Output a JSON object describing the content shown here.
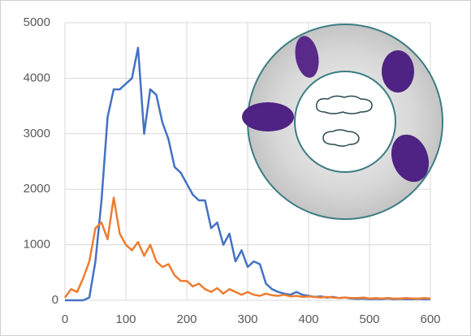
{
  "chart_data": {
    "type": "line",
    "x": [
      0,
      10,
      20,
      30,
      40,
      50,
      60,
      70,
      80,
      90,
      100,
      110,
      120,
      130,
      140,
      150,
      160,
      170,
      180,
      190,
      200,
      210,
      220,
      230,
      240,
      250,
      260,
      270,
      280,
      290,
      300,
      310,
      320,
      330,
      340,
      350,
      360,
      370,
      380,
      390,
      400,
      410,
      420,
      430,
      440,
      450,
      460,
      470,
      480,
      490,
      500,
      510,
      520,
      530,
      540,
      550,
      560,
      570,
      580,
      590,
      600
    ],
    "series": [
      {
        "color": "#4472c4",
        "values": [
          0,
          0,
          0,
          0,
          50,
          700,
          1800,
          3300,
          3800,
          3800,
          3900,
          4000,
          4550,
          3000,
          3800,
          3700,
          3200,
          2900,
          2400,
          2300,
          2100,
          1900,
          1800,
          1800,
          1300,
          1400,
          1000,
          1200,
          700,
          900,
          600,
          700,
          650,
          300,
          200,
          150,
          120,
          100,
          150,
          100,
          80,
          60,
          70,
          50,
          60,
          40,
          50,
          30,
          25,
          30,
          20,
          25,
          20,
          30,
          20,
          25,
          20,
          20,
          25,
          20,
          20
        ]
      },
      {
        "color": "#ed7d31",
        "values": [
          50,
          200,
          150,
          400,
          700,
          1300,
          1400,
          1100,
          1850,
          1200,
          1000,
          900,
          1050,
          800,
          1000,
          700,
          600,
          650,
          450,
          350,
          350,
          250,
          300,
          200,
          150,
          220,
          120,
          200,
          150,
          100,
          150,
          100,
          80,
          120,
          90,
          80,
          100,
          70,
          80,
          60,
          70,
          60,
          50,
          60,
          50,
          40,
          50,
          40,
          40,
          50,
          30,
          40,
          30,
          40,
          30,
          30,
          40,
          30,
          30,
          40,
          30
        ]
      }
    ],
    "xlim": [
      0,
      600
    ],
    "xticks": [
      0,
      100,
      200,
      300,
      400,
      500,
      600
    ],
    "ylim": [
      0,
      5000
    ],
    "yticks": [
      0,
      1000,
      2000,
      3000,
      4000,
      5000
    ],
    "grid": true
  }
}
